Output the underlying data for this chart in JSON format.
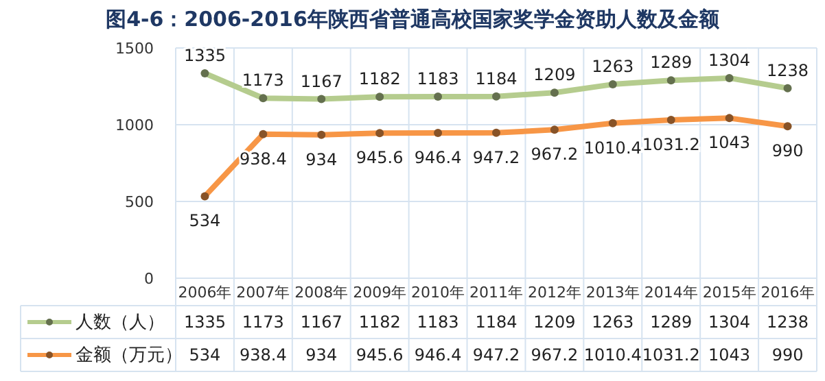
{
  "chart_data": [
    {
      "type": "line",
      "title": "图4-6：2006-2016年陕西省普通高校国家奖学金资助人数及金额",
      "categories": [
        "2006年",
        "2007年",
        "2008年",
        "2009年",
        "2010年",
        "2011年",
        "2012年",
        "2013年",
        "2014年",
        "2015年",
        "2016年"
      ],
      "series": [
        {
          "name": "人数（人）",
          "color": "#b5cc8e",
          "values": [
            1335,
            1173,
            1167,
            1182,
            1183,
            1184,
            1209,
            1263,
            1289,
            1304,
            1238
          ]
        },
        {
          "name": "金额（万元）",
          "color": "#f79646",
          "values": [
            534,
            938.4,
            934,
            945.6,
            946.4,
            947.2,
            967.2,
            1010.4,
            1031.2,
            1043,
            990
          ]
        }
      ],
      "ylim": [
        0,
        1500
      ],
      "yticks": [
        0,
        500,
        1000,
        1500
      ],
      "grid": true,
      "legend": "bottom",
      "marker": "circle",
      "data_labels": true
    },
    {
      "type": "other",
      "annotations": [
        "1335",
        "1173",
        "1167",
        "1182",
        "1183",
        "1184",
        "1209",
        "1263",
        "1289",
        "1304",
        "1238",
        "534",
        "938.4",
        "934",
        "945.6",
        "946.4",
        "947.2",
        "967.2",
        "1010.4",
        "1031.2",
        "1043",
        "990"
      ]
    }
  ]
}
